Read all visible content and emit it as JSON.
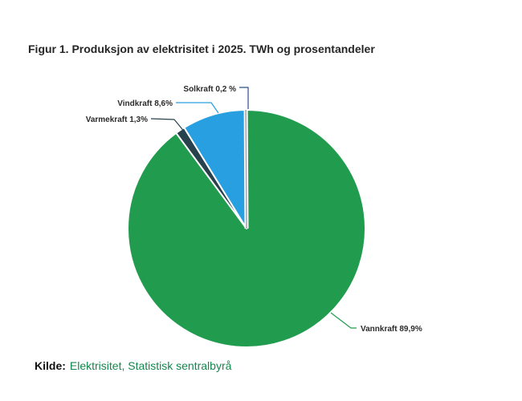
{
  "figure": {
    "title": "Figur 1. Produksjon av elektrisitet i 2025. TWh og prosentandeler"
  },
  "source": {
    "prefix": "Kilde:",
    "link": "Elektrisitet, Statistisk sentralbyrå",
    "link_color": "#13874d"
  },
  "chart_data": {
    "type": "pie",
    "title": "Figur 1. Produksjon av elektrisitet i 2025. TWh og prosentandeler",
    "value_unit": "percent",
    "direction": "clockwise",
    "start_angle_deg": 0,
    "legend": "none",
    "slices": [
      {
        "name": "Vannkraft",
        "value": 89.9,
        "label": "Vannkraft 89,9%",
        "color": "#219c4e"
      },
      {
        "name": "Varmekraft",
        "value": 1.3,
        "label": "Varmekraft 1,3%",
        "color": "#27424d"
      },
      {
        "name": "Vindkraft",
        "value": 8.6,
        "label": "Vindkraft 8,6%",
        "color": "#279fe0"
      },
      {
        "name": "Solkraft",
        "value": 0.2,
        "label": "Solkraft 0,2 %",
        "color": "#a8aab6",
        "leader_color": "#2f4d87"
      }
    ]
  }
}
